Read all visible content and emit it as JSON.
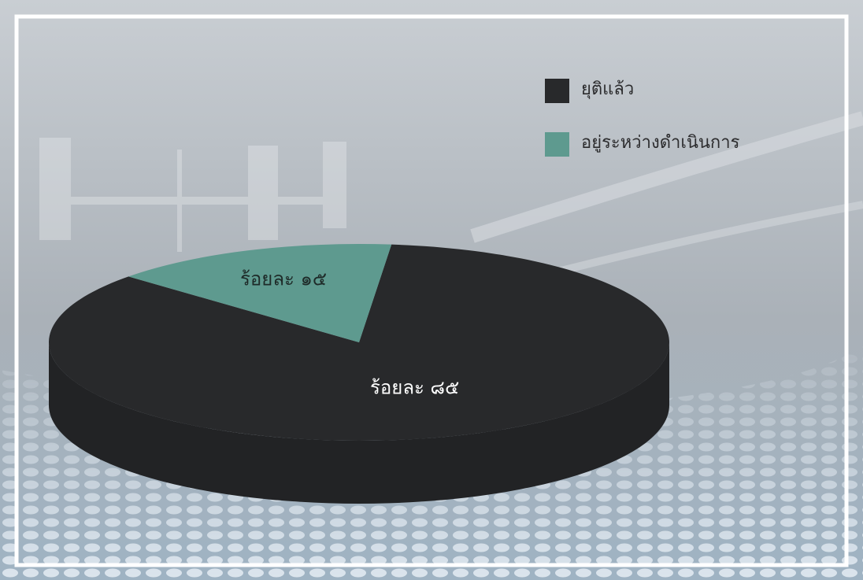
{
  "chart_data": {
    "type": "pie3d",
    "categories": [
      "ยุติแล้ว",
      "อยู่ระหว่างดำเนินการ"
    ],
    "values": [
      85,
      15
    ],
    "value_labels": [
      "ร้อยละ ๘๕",
      "ร้อยละ ๑๕"
    ],
    "colors": [
      "#28292b",
      "#5e9a8f"
    ],
    "legend": "top-right"
  }
}
